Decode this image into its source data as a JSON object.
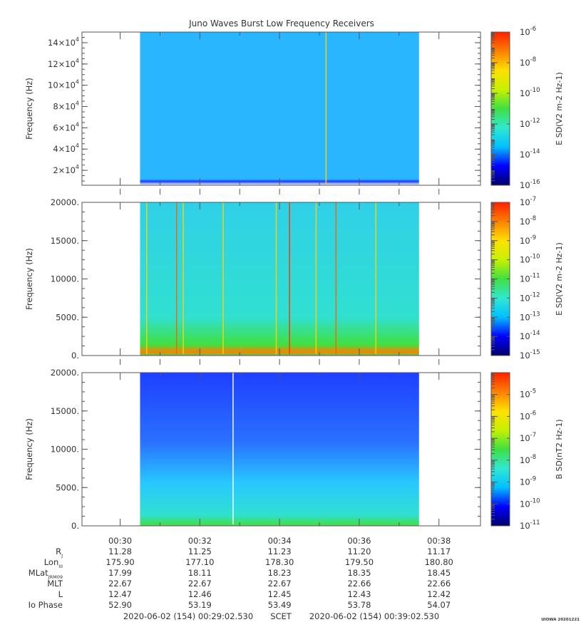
{
  "title": "Juno Waves Burst Low Frequency Receivers",
  "time_axis": {
    "ticks": [
      "00:30",
      "00:32",
      "00:34",
      "00:36",
      "00:38"
    ],
    "start": "2020-06-02 (154) 00:29:02.530",
    "end": "2020-06-02 (154) 00:39:02.530",
    "mid_label": "SCET"
  },
  "chart_data": [
    {
      "type": "heatmap",
      "panel": "top",
      "ylabel": "Frequency (Hz)",
      "y_ticks": [
        {
          "mant": "2×10",
          "exp": "4"
        },
        {
          "mant": "4×10",
          "exp": "4"
        },
        {
          "mant": "6×10",
          "exp": "4"
        },
        {
          "mant": "8×10",
          "exp": "4"
        },
        {
          "mant": "10×10",
          "exp": "4"
        },
        {
          "mant": "12×10",
          "exp": "4"
        },
        {
          "mant": "14×10",
          "exp": "4"
        }
      ],
      "y_tick_values": [
        20000,
        40000,
        60000,
        80000,
        100000,
        120000,
        140000
      ],
      "ylim": [
        6000,
        150000
      ],
      "data_time_range": [
        "00:30:30",
        "00:37:30"
      ],
      "colorbar": {
        "label": "E SD(V2 m-2 Hz-1)",
        "exponents": [
          "-6",
          "-8",
          "-10",
          "-12",
          "-14",
          "-16"
        ],
        "log_range": [
          -16,
          -6
        ]
      },
      "background_color": "#29b6ff",
      "floor_color": "#1040ff",
      "vertical_lines": [
        {
          "time": "00:35:10",
          "color": "#ffd000"
        }
      ]
    },
    {
      "type": "heatmap",
      "panel": "middle",
      "ylabel": "Frequency (Hz)",
      "y_ticks": [
        "0.",
        "5000.",
        "10000.",
        "15000.",
        "20000."
      ],
      "y_tick_values": [
        0,
        5000,
        10000,
        15000,
        20000
      ],
      "ylim": [
        0,
        20000
      ],
      "data_time_range": [
        "00:30:30",
        "00:37:30"
      ],
      "colorbar": {
        "label": "E SD(V2 m-2 Hz-1)",
        "exponents": [
          "-7",
          "-8",
          "-9",
          "-10",
          "-11",
          "-12",
          "-13",
          "-14",
          "-15"
        ],
        "log_range": [
          -15,
          -7
        ]
      },
      "background_color": "#30d8e0",
      "floor_color": "#40e040",
      "vertical_lines": [
        {
          "time": "00:30:40",
          "color": "#ffd000"
        },
        {
          "time": "00:31:25",
          "color": "#ff6000"
        },
        {
          "time": "00:31:35",
          "color": "#ffd000"
        },
        {
          "time": "00:32:35",
          "color": "#ffd000"
        },
        {
          "time": "00:33:55",
          "color": "#ffd000"
        },
        {
          "time": "00:34:15",
          "color": "#ff3000"
        },
        {
          "time": "00:34:55",
          "color": "#ffd000"
        },
        {
          "time": "00:35:25",
          "color": "#ff6000"
        },
        {
          "time": "00:36:25",
          "color": "#ffd000"
        }
      ]
    },
    {
      "type": "heatmap",
      "panel": "bottom",
      "ylabel": "Frequency (Hz)",
      "y_ticks": [
        "0.",
        "5000.",
        "10000.",
        "15000.",
        "20000."
      ],
      "y_tick_values": [
        0,
        5000,
        10000,
        15000,
        20000
      ],
      "ylim": [
        0,
        20000
      ],
      "data_time_range": [
        "00:30:30",
        "00:37:30"
      ],
      "colorbar": {
        "label": "B SD(nT2 Hz-1)",
        "exponents": [
          "-5",
          "-6",
          "-7",
          "-8",
          "-9",
          "-10",
          "-11"
        ],
        "log_range": [
          -11,
          -4
        ]
      },
      "background_color": "#1e40ff",
      "floor_color": "#40e040",
      "vertical_lines": [
        {
          "time": "00:32:50",
          "color": "#ffffff"
        }
      ]
    }
  ],
  "ephemeris": {
    "labels": [
      {
        "main": "R",
        "sub": "J"
      },
      {
        "main": "Lon",
        "sub": "III"
      },
      {
        "main": "MLat",
        "sub": "JRM09"
      },
      {
        "main": "MLT",
        "sub": ""
      },
      {
        "main": "L",
        "sub": ""
      },
      {
        "main": "Io Phase",
        "sub": ""
      }
    ],
    "rows": [
      [
        "11.28",
        "11.25",
        "11.23",
        "11.20",
        "11.17"
      ],
      [
        "175.90",
        "177.10",
        "178.30",
        "179.50",
        "180.80"
      ],
      [
        "17.99",
        "18.11",
        "18.23",
        "18.35",
        "18.45"
      ],
      [
        "22.67",
        "22.67",
        "22.67",
        "22.66",
        "22.66"
      ],
      [
        "12.47",
        "12.46",
        "12.45",
        "12.43",
        "12.42"
      ],
      [
        "52.90",
        "53.19",
        "53.49",
        "53.78",
        "54.07"
      ]
    ]
  },
  "footer_stamp": "UIOWA 20201221",
  "colors": {
    "axis": "#555555",
    "text": "#333333",
    "palette": [
      "#00006e",
      "#0000ff",
      "#00c0ff",
      "#30e8d0",
      "#40e040",
      "#c8f000",
      "#ffe000",
      "#ff8000",
      "#ff2000"
    ]
  }
}
